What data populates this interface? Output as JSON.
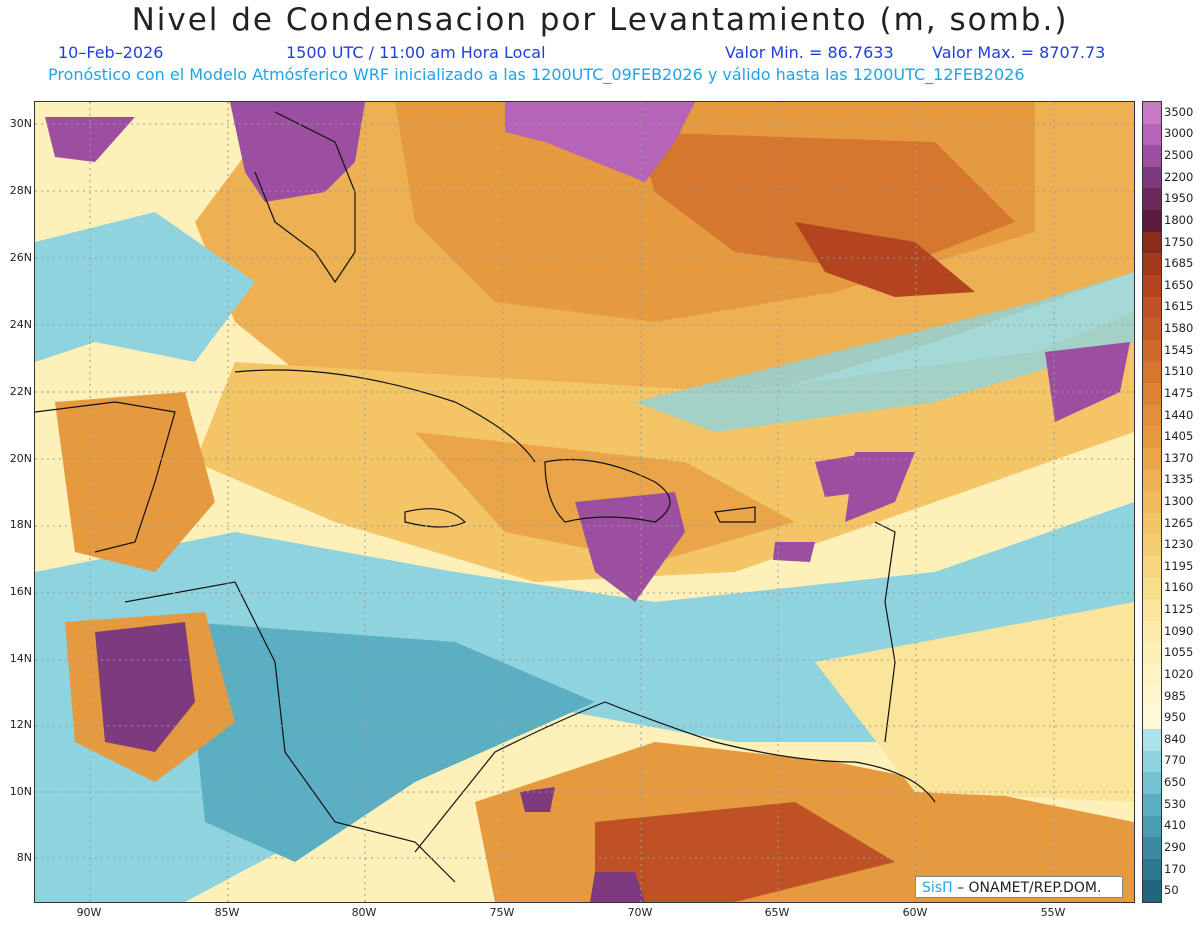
{
  "header": {
    "title": "Nivel de Condensacion por Levantamiento (m, somb.)",
    "date": "10–Feb–2026",
    "time": "1500 UTC / 11:00 am Hora Local",
    "min": "Valor Min. = 86.7633",
    "max": "Valor Max. = 8707.73",
    "forecast": "Pronóstico con el Modelo Atmósferico WRF inicializado a las 1200UTC_09FEB2026 y válido hasta las  1200UTC_12FEB2026"
  },
  "map": {
    "lat_labels": [
      "30N",
      "28N",
      "26N",
      "24N",
      "22N",
      "20N",
      "18N",
      "16N",
      "14N",
      "12N",
      "10N",
      "8N"
    ],
    "lon_labels": [
      "90W",
      "85W",
      "80W",
      "75W",
      "70W",
      "65W",
      "60W",
      "55W"
    ],
    "icons": [
      "coastline-shapes",
      "state-borders"
    ],
    "credit_logo": "SisΠ",
    "credit_text": "– ONAMET/REP.DOM."
  },
  "colorbar": {
    "labels": [
      "3500",
      "3000",
      "2500",
      "2200",
      "1950",
      "1800",
      "1750",
      "1685",
      "1650",
      "1615",
      "1580",
      "1545",
      "1510",
      "1475",
      "1440",
      "1405",
      "1370",
      "1335",
      "1300",
      "1265",
      "1230",
      "1195",
      "1160",
      "1125",
      "1090",
      "1055",
      "1020",
      "985",
      "950",
      "840",
      "770",
      "650",
      "530",
      "410",
      "290",
      "170",
      "50"
    ],
    "colors": [
      "#c47ac4",
      "#b564b8",
      "#9c4ea0",
      "#7e3a7e",
      "#6b2a5a",
      "#5a1a3c",
      "#8a2c1a",
      "#a33a1c",
      "#b2451f",
      "#bf5224",
      "#c75e28",
      "#cf6a2c",
      "#d67730",
      "#dc8434",
      "#e18f3a",
      "#e59a40",
      "#e9a548",
      "#edb052",
      "#f0bb5c",
      "#f3c567",
      "#f5ce73",
      "#f7d680",
      "#f9de8d",
      "#fbe59a",
      "#fcebaa",
      "#fdf0b8",
      "#fef4c4",
      "#fff7cf",
      "#fff9d9",
      "#aee3ea",
      "#8fd3df",
      "#73c2d2",
      "#5cafc2",
      "#4a9cb1",
      "#3a89a0",
      "#2d778f",
      "#22657e"
    ]
  }
}
